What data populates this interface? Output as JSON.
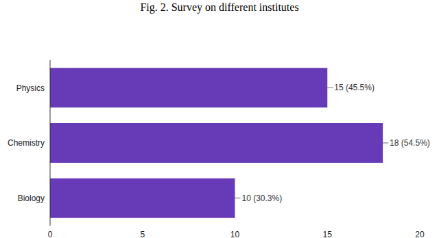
{
  "chart_data": {
    "type": "bar",
    "title": "Fig. 2. Survey on different institutes",
    "orientation": "horizontal",
    "categories": [
      "Physics",
      "Chemistry",
      "Biology"
    ],
    "values": [
      15,
      18,
      10
    ],
    "value_labels": [
      "15 (45.5%)",
      "18 (54.5%)",
      "10 (30.3%)"
    ],
    "data_labels": true,
    "color": "#673ab7",
    "xlim": [
      0,
      20
    ],
    "xticks": [
      0,
      5,
      10,
      15,
      20
    ],
    "grid": false
  }
}
